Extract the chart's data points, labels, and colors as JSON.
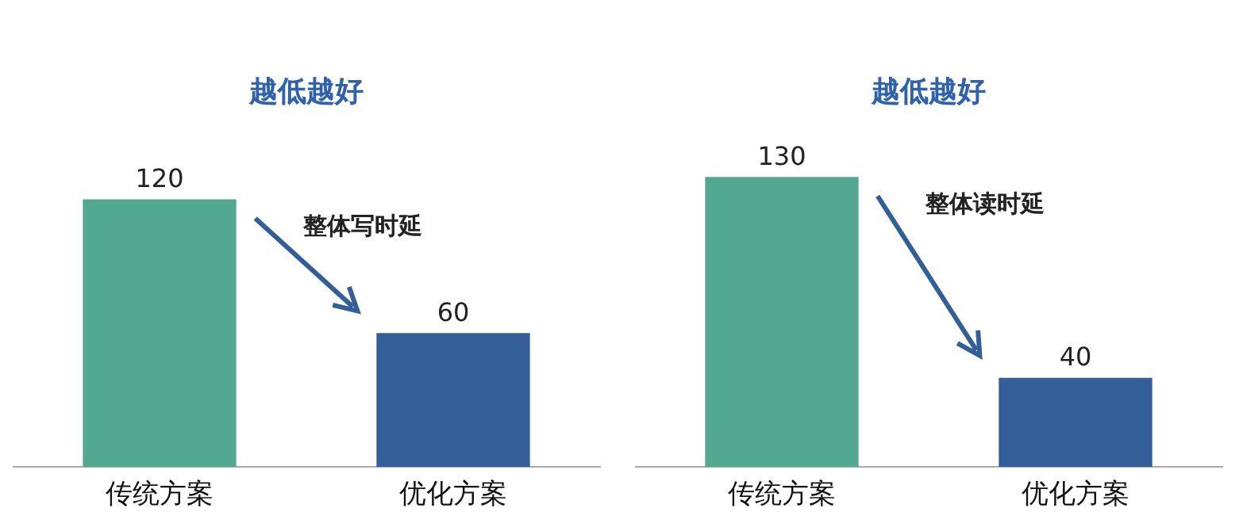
{
  "chart_data": [
    {
      "type": "bar",
      "title": "越低越好",
      "categories": [
        "传统方案",
        "优化方案"
      ],
      "values": [
        120,
        60
      ],
      "colors": [
        "#52a890",
        "#345e98"
      ],
      "data_labels": true,
      "grid": false,
      "legend": false,
      "annotations": [
        "整体写时延"
      ]
    },
    {
      "type": "bar",
      "title": "越低越好",
      "categories": [
        "传统方案",
        "优化方案"
      ],
      "values": [
        130,
        40
      ],
      "colors": [
        "#52a890",
        "#345e98"
      ],
      "data_labels": true,
      "grid": false,
      "legend": false,
      "annotations": [
        "整体读时延"
      ]
    }
  ]
}
